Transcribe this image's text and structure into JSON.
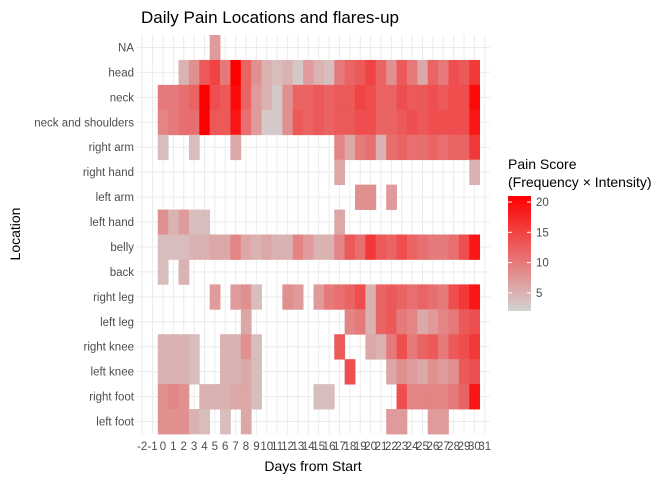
{
  "chart_data": {
    "type": "heatmap",
    "title": "Daily Pain Locations and flares-up",
    "xlabel": "Days from Start",
    "ylabel": "Location",
    "x_ticks": [
      "-2",
      "-1",
      "0",
      "1",
      "2",
      "3",
      "4",
      "5",
      "6",
      "7",
      "8",
      "9",
      "10",
      "11",
      "12",
      "13",
      "14",
      "15",
      "16",
      "17",
      "18",
      "19",
      "20",
      "21",
      "22",
      "23",
      "24",
      "25",
      "26",
      "27",
      "28",
      "29",
      "30",
      "31"
    ],
    "xlim": [
      -2,
      31
    ],
    "categories": [
      "NA",
      "head",
      "neck",
      "neck and shoulders",
      "right arm",
      "right hand",
      "left arm",
      "left hand",
      "belly",
      "back",
      "right leg",
      "left leg",
      "right knee",
      "left knee",
      "right foot",
      "left foot"
    ],
    "legend": {
      "title_line1": "Pain Score",
      "title_line2": "(Frequency × Intensity)",
      "ticks": [
        5,
        10,
        15,
        20
      ],
      "range": [
        2,
        21
      ],
      "color_low": "#d3d3d3",
      "color_high": "#ff0000"
    },
    "grid": true,
    "legend_position": "right",
    "series": [
      {
        "location": "NA",
        "points": [
          [
            5,
            7
          ]
        ]
      },
      {
        "location": "head",
        "points": [
          [
            2,
            5
          ],
          [
            3,
            8
          ],
          [
            4,
            13
          ],
          [
            5,
            15
          ],
          [
            6,
            10
          ],
          [
            7,
            21
          ],
          [
            8,
            12
          ],
          [
            9,
            8
          ],
          [
            10,
            5
          ],
          [
            11,
            4
          ],
          [
            12,
            5
          ],
          [
            13,
            3
          ],
          [
            14,
            7
          ],
          [
            15,
            5
          ],
          [
            16,
            4
          ],
          [
            17,
            10
          ],
          [
            18,
            12
          ],
          [
            19,
            13
          ],
          [
            20,
            15
          ],
          [
            21,
            12
          ],
          [
            22,
            8
          ],
          [
            23,
            13
          ],
          [
            24,
            10
          ],
          [
            25,
            6
          ],
          [
            26,
            12
          ],
          [
            27,
            10
          ],
          [
            28,
            14
          ],
          [
            29,
            13
          ],
          [
            30,
            16
          ]
        ]
      },
      {
        "location": "neck",
        "points": [
          [
            0,
            10
          ],
          [
            1,
            10
          ],
          [
            2,
            11
          ],
          [
            3,
            12
          ],
          [
            4,
            21
          ],
          [
            5,
            14
          ],
          [
            6,
            13
          ],
          [
            7,
            20
          ],
          [
            8,
            12
          ],
          [
            9,
            7
          ],
          [
            10,
            5
          ],
          [
            11,
            3
          ],
          [
            12,
            8
          ],
          [
            13,
            12
          ],
          [
            14,
            12
          ],
          [
            15,
            13
          ],
          [
            16,
            12
          ],
          [
            17,
            13
          ],
          [
            18,
            13
          ],
          [
            19,
            15
          ],
          [
            20,
            14
          ],
          [
            21,
            12
          ],
          [
            22,
            12
          ],
          [
            23,
            14
          ],
          [
            24,
            13
          ],
          [
            25,
            13
          ],
          [
            26,
            14
          ],
          [
            27,
            13
          ],
          [
            28,
            14
          ],
          [
            29,
            14
          ],
          [
            30,
            20
          ]
        ]
      },
      {
        "location": "neck and shoulders",
        "points": [
          [
            0,
            9
          ],
          [
            1,
            10
          ],
          [
            2,
            11
          ],
          [
            3,
            11
          ],
          [
            4,
            22
          ],
          [
            5,
            13
          ],
          [
            6,
            13
          ],
          [
            7,
            19
          ],
          [
            8,
            11
          ],
          [
            9,
            7
          ],
          [
            10,
            3
          ],
          [
            11,
            3
          ],
          [
            12,
            8
          ],
          [
            13,
            13
          ],
          [
            14,
            12
          ],
          [
            15,
            13
          ],
          [
            16,
            12
          ],
          [
            17,
            13
          ],
          [
            18,
            13
          ],
          [
            19,
            14
          ],
          [
            20,
            14
          ],
          [
            21,
            12
          ],
          [
            22,
            12
          ],
          [
            23,
            13
          ],
          [
            24,
            14
          ],
          [
            25,
            13
          ],
          [
            26,
            14
          ],
          [
            27,
            14
          ],
          [
            28,
            14
          ],
          [
            29,
            14
          ],
          [
            30,
            19
          ]
        ]
      },
      {
        "location": "right arm",
        "points": [
          [
            0,
            4
          ],
          [
            3,
            4
          ],
          [
            7,
            6
          ],
          [
            17,
            9
          ],
          [
            18,
            6
          ],
          [
            19,
            10
          ],
          [
            20,
            11
          ],
          [
            21,
            5
          ],
          [
            22,
            11
          ],
          [
            23,
            12
          ],
          [
            24,
            11
          ],
          [
            25,
            11
          ],
          [
            26,
            12
          ],
          [
            27,
            11
          ],
          [
            28,
            12
          ],
          [
            29,
            12
          ],
          [
            30,
            16
          ]
        ]
      },
      {
        "location": "right hand",
        "points": [
          [
            17,
            6
          ],
          [
            30,
            5
          ]
        ]
      },
      {
        "location": "left arm",
        "points": [
          [
            19,
            8
          ],
          [
            20,
            8
          ],
          [
            22,
            7
          ]
        ]
      },
      {
        "location": "left hand",
        "points": [
          [
            0,
            8
          ],
          [
            1,
            5
          ],
          [
            2,
            7
          ],
          [
            3,
            4
          ],
          [
            4,
            4
          ],
          [
            17,
            6
          ]
        ]
      },
      {
        "location": "belly",
        "points": [
          [
            0,
            4
          ],
          [
            1,
            4
          ],
          [
            2,
            4
          ],
          [
            3,
            5
          ],
          [
            4,
            5
          ],
          [
            5,
            6
          ],
          [
            6,
            6
          ],
          [
            7,
            9
          ],
          [
            8,
            6
          ],
          [
            9,
            5
          ],
          [
            10,
            6
          ],
          [
            11,
            5
          ],
          [
            12,
            5
          ],
          [
            13,
            9
          ],
          [
            14,
            7
          ],
          [
            15,
            5
          ],
          [
            16,
            5
          ],
          [
            17,
            9
          ],
          [
            18,
            13
          ],
          [
            19,
            11
          ],
          [
            20,
            16
          ],
          [
            21,
            13
          ],
          [
            22,
            12
          ],
          [
            23,
            14
          ],
          [
            24,
            12
          ],
          [
            25,
            11
          ],
          [
            26,
            10
          ],
          [
            27,
            10
          ],
          [
            28,
            11
          ],
          [
            29,
            14
          ],
          [
            30,
            19
          ]
        ]
      },
      {
        "location": "back",
        "points": [
          [
            0,
            4
          ],
          [
            2,
            5
          ]
        ]
      },
      {
        "location": "right leg",
        "points": [
          [
            5,
            7
          ],
          [
            7,
            7
          ],
          [
            8,
            8
          ],
          [
            9,
            4
          ],
          [
            12,
            8
          ],
          [
            13,
            7
          ],
          [
            15,
            7
          ],
          [
            16,
            10
          ],
          [
            17,
            11
          ],
          [
            18,
            12
          ],
          [
            19,
            14
          ],
          [
            20,
            5
          ],
          [
            21,
            12
          ],
          [
            22,
            13
          ],
          [
            23,
            12
          ],
          [
            24,
            11
          ],
          [
            25,
            12
          ],
          [
            26,
            11
          ],
          [
            27,
            10
          ],
          [
            28,
            14
          ],
          [
            29,
            16
          ],
          [
            30,
            19
          ]
        ]
      },
      {
        "location": "left leg",
        "points": [
          [
            8,
            6
          ],
          [
            18,
            9
          ],
          [
            19,
            10
          ],
          [
            20,
            5
          ],
          [
            21,
            12
          ],
          [
            22,
            13
          ],
          [
            23,
            10
          ],
          [
            24,
            9
          ],
          [
            25,
            6
          ],
          [
            26,
            7
          ],
          [
            27,
            9
          ],
          [
            28,
            10
          ],
          [
            29,
            13
          ],
          [
            30,
            14
          ]
        ]
      },
      {
        "location": "right knee",
        "points": [
          [
            0,
            5
          ],
          [
            1,
            5
          ],
          [
            2,
            5
          ],
          [
            3,
            4
          ],
          [
            6,
            5
          ],
          [
            7,
            5
          ],
          [
            8,
            8
          ],
          [
            9,
            4
          ],
          [
            17,
            13
          ],
          [
            20,
            6
          ],
          [
            21,
            5
          ],
          [
            22,
            10
          ],
          [
            23,
            14
          ],
          [
            24,
            10
          ],
          [
            25,
            12
          ],
          [
            26,
            13
          ],
          [
            27,
            10
          ],
          [
            28,
            13
          ],
          [
            29,
            14
          ],
          [
            30,
            16
          ]
        ]
      },
      {
        "location": "left knee",
        "points": [
          [
            0,
            5
          ],
          [
            1,
            5
          ],
          [
            2,
            5
          ],
          [
            3,
            4
          ],
          [
            6,
            5
          ],
          [
            7,
            5
          ],
          [
            8,
            6
          ],
          [
            9,
            4
          ],
          [
            18,
            14
          ],
          [
            22,
            6
          ],
          [
            23,
            8
          ],
          [
            24,
            7
          ],
          [
            25,
            6
          ],
          [
            26,
            8
          ],
          [
            27,
            7
          ],
          [
            28,
            8
          ],
          [
            29,
            13
          ],
          [
            30,
            14
          ]
        ]
      },
      {
        "location": "right foot",
        "points": [
          [
            0,
            8
          ],
          [
            1,
            9
          ],
          [
            2,
            8
          ],
          [
            4,
            5
          ],
          [
            5,
            5
          ],
          [
            6,
            5
          ],
          [
            7,
            6
          ],
          [
            8,
            6
          ],
          [
            9,
            4
          ],
          [
            15,
            4
          ],
          [
            16,
            4
          ],
          [
            23,
            14
          ],
          [
            24,
            9
          ],
          [
            25,
            9
          ],
          [
            26,
            9
          ],
          [
            27,
            9
          ],
          [
            28,
            10
          ],
          [
            29,
            12
          ],
          [
            30,
            19
          ]
        ]
      },
      {
        "location": "left foot",
        "points": [
          [
            0,
            8
          ],
          [
            1,
            8
          ],
          [
            2,
            8
          ],
          [
            3,
            5
          ],
          [
            4,
            4
          ],
          [
            6,
            4
          ],
          [
            8,
            6
          ],
          [
            22,
            7
          ],
          [
            23,
            7
          ],
          [
            26,
            7
          ],
          [
            27,
            7
          ]
        ]
      }
    ]
  }
}
